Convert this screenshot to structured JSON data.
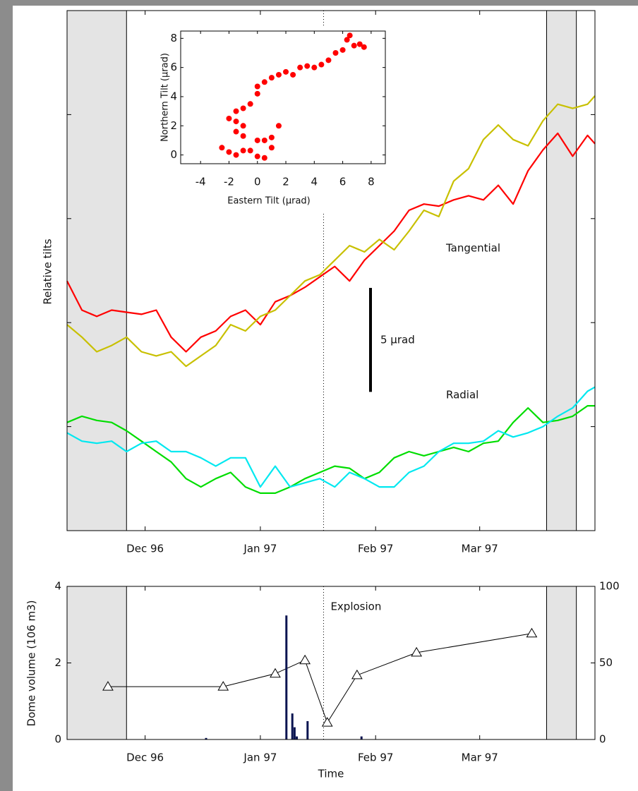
{
  "chart_data": [
    {
      "type": "line",
      "y_label": "Relative tilts",
      "x": [
        9,
        13,
        17,
        21,
        25,
        29,
        33,
        37,
        41,
        45,
        49,
        53,
        57,
        61,
        65,
        69,
        73,
        77,
        81,
        85,
        89,
        93,
        97,
        101,
        105,
        109,
        113,
        117,
        121,
        125,
        129,
        133,
        137,
        141,
        145,
        149,
        151
      ],
      "xlim": [
        9,
        151
      ],
      "xticks": [
        {
          "value": 30,
          "label": "Dec 96"
        },
        {
          "value": 61,
          "label": "Jan 97"
        },
        {
          "value": 92,
          "label": "Feb 97"
        },
        {
          "value": 120,
          "label": "Mar 97"
        }
      ],
      "ylim": [
        0,
        25
      ],
      "yticks": [
        5,
        10,
        15,
        20
      ],
      "shaded_spans": [
        [
          9,
          25
        ],
        [
          138,
          146
        ]
      ],
      "event_x": 78,
      "series": [
        {
          "color": "#ff0000",
          "values": [
            12.0,
            10.6,
            10.3,
            10.6,
            10.5,
            10.4,
            10.6,
            9.3,
            8.6,
            9.3,
            9.6,
            10.3,
            10.6,
            9.9,
            11.0,
            11.3,
            11.7,
            12.2,
            12.7,
            12.0,
            13.0,
            13.7,
            14.4,
            15.4,
            15.7,
            15.6,
            15.9,
            16.1,
            15.9,
            16.6,
            15.7,
            17.3,
            18.3,
            19.1,
            18.0,
            19.0,
            18.6
          ]
        },
        {
          "color": "#c8c000",
          "values": [
            9.9,
            9.3,
            8.6,
            8.9,
            9.3,
            8.6,
            8.4,
            8.6,
            7.9,
            8.4,
            8.9,
            9.9,
            9.6,
            10.3,
            10.6,
            11.3,
            12.0,
            12.3,
            13.0,
            13.7,
            13.4,
            14.0,
            13.5,
            14.4,
            15.4,
            15.1,
            16.8,
            17.4,
            18.8,
            19.5,
            18.8,
            18.5,
            19.7,
            20.5,
            20.3,
            20.5,
            20.9
          ]
        },
        {
          "color": "#00dd00",
          "values": [
            5.2,
            5.5,
            5.3,
            5.2,
            4.8,
            4.3,
            3.8,
            3.3,
            2.5,
            2.1,
            2.5,
            2.8,
            2.1,
            1.8,
            1.8,
            2.1,
            2.5,
            2.8,
            3.1,
            3.0,
            2.5,
            2.8,
            3.5,
            3.8,
            3.6,
            3.8,
            4.0,
            3.8,
            4.2,
            4.3,
            5.2,
            5.9,
            5.2,
            5.3,
            5.5,
            6.0,
            6.0
          ]
        },
        {
          "color": "#00e8f0",
          "values": [
            4.7,
            4.3,
            4.2,
            4.3,
            3.8,
            4.2,
            4.3,
            3.8,
            3.8,
            3.5,
            3.1,
            3.5,
            3.5,
            2.1,
            3.1,
            2.1,
            2.3,
            2.5,
            2.1,
            2.8,
            2.5,
            2.1,
            2.1,
            2.8,
            3.1,
            3.8,
            4.2,
            4.2,
            4.3,
            4.8,
            4.5,
            4.7,
            5.0,
            5.5,
            5.9,
            6.7,
            6.9
          ]
        }
      ],
      "annotations": [
        {
          "text": "Tangential"
        },
        {
          "text": "Radial"
        }
      ],
      "scale_bar": {
        "label": "5 µrad",
        "value": 5
      }
    },
    {
      "type": "scatter",
      "x_label": "Eastern Tilt (µrad)",
      "y_label": "Northern Tilt (µrad)",
      "color": "#ff0000",
      "x": [
        -2.5,
        -2.0,
        -1.5,
        -1.0,
        -0.5,
        0.0,
        0.5,
        1.0,
        0.5,
        0.0,
        -1.0,
        -1.5,
        -2.0,
        -1.5,
        -1.0,
        -1.5,
        -1.0,
        -0.5,
        0.0,
        0.0,
        0.5,
        1.0,
        1.5,
        2.0,
        2.5,
        3.0,
        3.5,
        4.0,
        4.5,
        5.0,
        5.5,
        6.0,
        6.3,
        6.5,
        6.8,
        7.2,
        7.5,
        1.0,
        1.5
      ],
      "y": [
        0.5,
        0.2,
        0.0,
        0.3,
        0.3,
        -0.1,
        -0.2,
        0.5,
        1.0,
        1.0,
        1.3,
        1.6,
        2.5,
        2.3,
        2.0,
        3.0,
        3.2,
        3.5,
        4.2,
        4.7,
        5.0,
        5.3,
        5.5,
        5.7,
        5.5,
        6.0,
        6.1,
        6.0,
        6.2,
        6.5,
        7.0,
        7.2,
        7.9,
        8.2,
        7.5,
        7.6,
        7.4,
        1.2,
        2.0
      ],
      "xlim": [
        -5.4,
        9
      ],
      "xticks": [
        -4,
        -2,
        0,
        2,
        4,
        6,
        8
      ],
      "ylim": [
        -0.6,
        8.5
      ],
      "yticks": [
        0,
        2,
        4,
        6,
        8
      ]
    },
    {
      "type": "combo",
      "y_label": "Dome volume (106 m3)",
      "x_label": "Time",
      "xlim": [
        9,
        151
      ],
      "xticks": [
        {
          "value": 30,
          "label": "Dec 96"
        },
        {
          "value": 61,
          "label": "Jan 97"
        },
        {
          "value": 92,
          "label": "Feb 97"
        },
        {
          "value": 120,
          "label": "Mar 97"
        }
      ],
      "ylim": [
        0,
        4
      ],
      "yticks": [
        0,
        2,
        4
      ],
      "y2lim": [
        0,
        100
      ],
      "y2ticks": [
        0,
        50,
        100
      ],
      "shaded_spans": [
        [
          9,
          25
        ],
        [
          138,
          146
        ]
      ],
      "event_x": 78,
      "annotations": [
        {
          "text": "Explosion"
        }
      ],
      "series": [
        {
          "type": "line",
          "color": "#000000",
          "x": [
            20,
            51,
            65,
            73,
            79,
            87,
            103,
            134
          ],
          "values": [
            1.38,
            1.38,
            1.72,
            2.07,
            0.44,
            1.68,
            2.27,
            2.77
          ]
        },
        {
          "type": "bar",
          "axis": "y2",
          "color": "#0a1450",
          "x": [
            46.4,
            68,
            69.6,
            70.2,
            70.8,
            73.7,
            88.2
          ],
          "values": [
            1,
            81,
            17,
            8,
            2,
            12,
            2
          ]
        }
      ]
    }
  ]
}
